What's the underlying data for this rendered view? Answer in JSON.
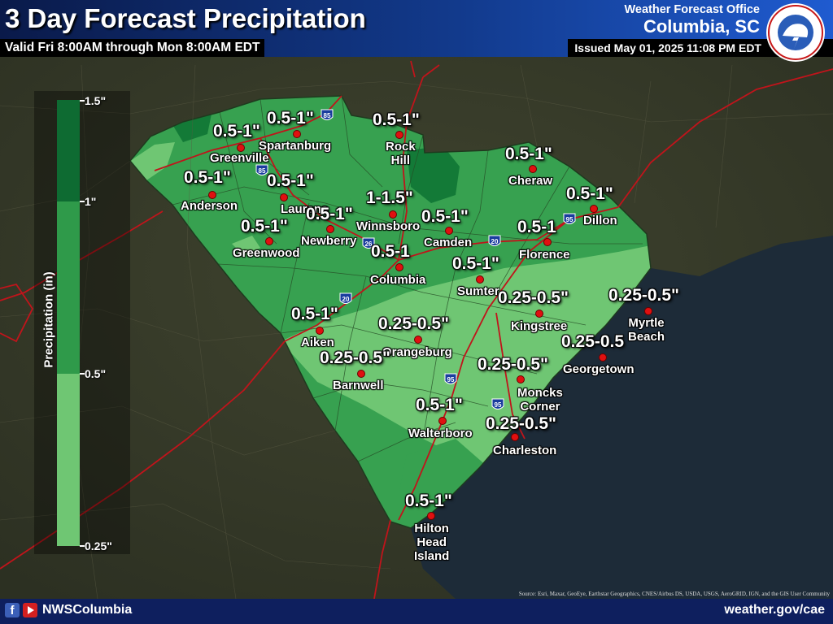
{
  "header": {
    "title": "3 Day Forecast Precipitation",
    "valid": "Valid Fri 8:00AM through Mon 8:00AM EDT",
    "office_line1": "Weather Forecast Office",
    "office_line2": "Columbia, SC",
    "issued": "Issued May 01, 2025 11:08 PM EDT",
    "logo_icon": "nws-logo-icon"
  },
  "legend": {
    "axis_label": "Precipitation (in)",
    "ticks": [
      "1.5\"",
      "1\"",
      "0.5\"",
      "0.25\""
    ],
    "colors": {
      "1-1.5": "#0e6b32",
      "0.5-1": "#2f9a4a",
      "0.25-0.5": "#6fc673"
    }
  },
  "map": {
    "colors": {
      "land": "#3c3f30",
      "water": "#1c2a36",
      "roads": "#c0141b",
      "low": "#6fc673",
      "mid": "#37a150",
      "high": "#137a37"
    },
    "highway_shields": [
      "85",
      "85",
      "26",
      "20",
      "20",
      "95",
      "95",
      "95"
    ],
    "points": [
      {
        "city": "Greenville",
        "amount": "0.5-1\""
      },
      {
        "city": "Spartanburg",
        "amount": "0.5-1\""
      },
      {
        "city": "Rock\nHill",
        "amount": "0.5-1\""
      },
      {
        "city": "Anderson",
        "amount": "0.5-1\""
      },
      {
        "city": "Laurens",
        "amount": "0.5-1\""
      },
      {
        "city": "Cheraw",
        "amount": "0.5-1\""
      },
      {
        "city": "Winnsboro",
        "amount": "1-1.5\""
      },
      {
        "city": "Dillon",
        "amount": "0.5-1\""
      },
      {
        "city": "Newberry",
        "amount": "0.5-1\""
      },
      {
        "city": "Camden",
        "amount": "0.5-1\""
      },
      {
        "city": "Greenwood",
        "amount": "0.5-1\""
      },
      {
        "city": "Florence",
        "amount": "0.5-1"
      },
      {
        "city": "Columbia",
        "amount": "0.5-1"
      },
      {
        "city": "Sumter",
        "amount": "0.5-1\""
      },
      {
        "city": "Kingstree",
        "amount": "0.25-0.5\""
      },
      {
        "city": "Myrtle\nBeach",
        "amount": "0.25-0.5\""
      },
      {
        "city": "Aiken",
        "amount": "0.5-1\""
      },
      {
        "city": "Orangeburg",
        "amount": "0.25-0.5\""
      },
      {
        "city": "Georgetown",
        "amount": "0.25-0.5"
      },
      {
        "city": "Barnwell",
        "amount": "0.25-0.5\""
      },
      {
        "city": "Moncks\nCorner",
        "amount": "0.25-0.5\""
      },
      {
        "city": "Walterboro",
        "amount": "0.5-1\""
      },
      {
        "city": "Charleston",
        "amount": "0.25-0.5\""
      },
      {
        "city": "Hilton\nHead\nIsland",
        "amount": "0.5-1\""
      }
    ]
  },
  "footer": {
    "handle": "NWSColumbia",
    "website": "weather.gov/cae",
    "source": "Source: Esri, Maxar, GeoEye, Earthstar Geographics, CNES/Airbus DS, USDA, USGS, AeroGRID, IGN, and the GIS User Community",
    "social_icons": [
      "facebook-icon",
      "youtube-icon"
    ]
  }
}
